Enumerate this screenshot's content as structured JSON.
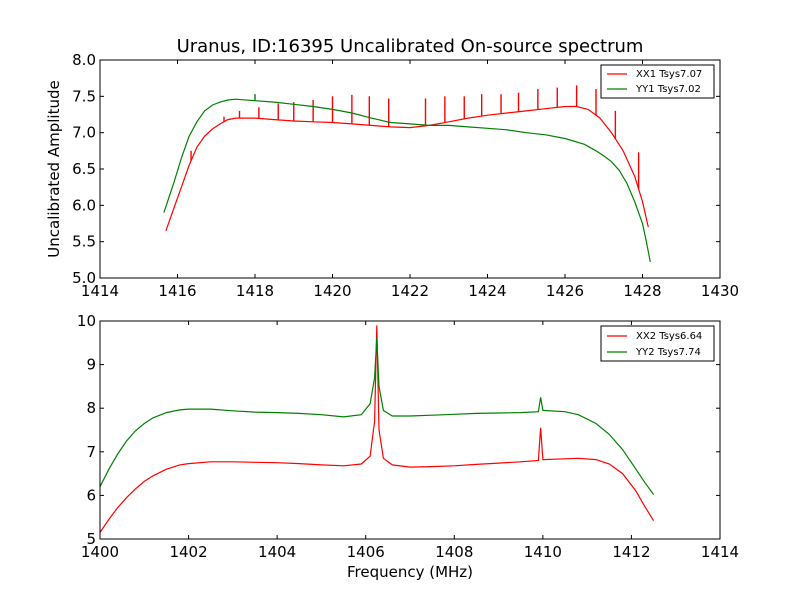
{
  "figure": {
    "title": "Uranus, ID:16395 Uncalibrated On-source spectrum"
  },
  "chart_data": [
    {
      "type": "line",
      "title": "Uranus, ID:16395 Uncalibrated On-source spectrum",
      "xlabel": "",
      "ylabel": "Uncalibrated Amplitude",
      "xlim": [
        1414,
        1430
      ],
      "ylim": [
        5.0,
        8.0
      ],
      "xticks": [
        "1414",
        "1416",
        "1418",
        "1420",
        "1422",
        "1424",
        "1426",
        "1428",
        "1430"
      ],
      "yticks": [
        "5.0",
        "5.5",
        "6.0",
        "6.5",
        "7.0",
        "7.5",
        "8.0"
      ],
      "legend_position": "top-right",
      "series": [
        {
          "name": "XX1 Tsys7.07",
          "color": "#ff0000",
          "x": [
            1415.7,
            1415.9,
            1416.1,
            1416.3,
            1416.5,
            1416.7,
            1416.9,
            1417.1,
            1417.3,
            1417.5,
            1418.0,
            1418.5,
            1419.0,
            1419.5,
            1420.0,
            1420.5,
            1421.0,
            1421.5,
            1422.0,
            1422.5,
            1423.0,
            1423.5,
            1424.0,
            1424.5,
            1425.0,
            1425.5,
            1426.0,
            1426.3,
            1426.6,
            1426.9,
            1427.2,
            1427.5,
            1427.8,
            1428.0,
            1428.15
          ],
          "y": [
            5.65,
            5.95,
            6.25,
            6.55,
            6.8,
            6.95,
            7.05,
            7.12,
            7.18,
            7.2,
            7.2,
            7.18,
            7.16,
            7.15,
            7.14,
            7.12,
            7.1,
            7.08,
            7.07,
            7.1,
            7.15,
            7.2,
            7.24,
            7.27,
            7.3,
            7.33,
            7.36,
            7.36,
            7.32,
            7.2,
            7.0,
            6.75,
            6.4,
            6.05,
            5.7
          ],
          "spikes": [
            {
              "x": 1416.35,
              "y": 6.75
            },
            {
              "x": 1417.2,
              "y": 7.22
            },
            {
              "x": 1417.6,
              "y": 7.3
            },
            {
              "x": 1418.1,
              "y": 7.35
            },
            {
              "x": 1418.6,
              "y": 7.4
            },
            {
              "x": 1419.0,
              "y": 7.42
            },
            {
              "x": 1419.5,
              "y": 7.45
            },
            {
              "x": 1420.0,
              "y": 7.5
            },
            {
              "x": 1420.5,
              "y": 7.52
            },
            {
              "x": 1420.95,
              "y": 7.5
            },
            {
              "x": 1421.45,
              "y": 7.47
            },
            {
              "x": 1422.4,
              "y": 7.47
            },
            {
              "x": 1422.9,
              "y": 7.5
            },
            {
              "x": 1423.4,
              "y": 7.5
            },
            {
              "x": 1423.85,
              "y": 7.53
            },
            {
              "x": 1424.35,
              "y": 7.53
            },
            {
              "x": 1424.8,
              "y": 7.55
            },
            {
              "x": 1425.3,
              "y": 7.6
            },
            {
              "x": 1425.8,
              "y": 7.62
            },
            {
              "x": 1426.3,
              "y": 7.65
            },
            {
              "x": 1426.8,
              "y": 7.6
            },
            {
              "x": 1427.3,
              "y": 7.3
            },
            {
              "x": 1427.9,
              "y": 6.73
            }
          ]
        },
        {
          "name": "YY1 Tsys7.02",
          "color": "#008000",
          "x": [
            1415.65,
            1415.9,
            1416.1,
            1416.3,
            1416.5,
            1416.7,
            1416.9,
            1417.1,
            1417.3,
            1417.5,
            1418.0,
            1418.5,
            1419.0,
            1419.5,
            1420.0,
            1420.5,
            1421.0,
            1421.5,
            1422.0,
            1422.5,
            1423.0,
            1423.5,
            1424.0,
            1424.5,
            1425.0,
            1425.5,
            1426.0,
            1426.5,
            1426.8,
            1427.0,
            1427.2,
            1427.4,
            1427.6,
            1427.8,
            1428.0,
            1428.1,
            1428.2
          ],
          "y": [
            5.9,
            6.3,
            6.65,
            6.95,
            7.15,
            7.3,
            7.38,
            7.42,
            7.45,
            7.46,
            7.44,
            7.42,
            7.39,
            7.36,
            7.32,
            7.27,
            7.2,
            7.14,
            7.12,
            7.1,
            7.1,
            7.08,
            7.06,
            7.04,
            7.0,
            6.97,
            6.92,
            6.84,
            6.75,
            6.68,
            6.6,
            6.48,
            6.3,
            6.05,
            5.75,
            5.5,
            5.22
          ],
          "spikes": [
            {
              "x": 1418.0,
              "y": 7.53
            }
          ]
        }
      ]
    },
    {
      "type": "line",
      "title": "",
      "xlabel": "Frequency (MHz)",
      "ylabel": "",
      "xlim": [
        1400,
        1414
      ],
      "ylim": [
        5,
        10
      ],
      "xticks": [
        "1400",
        "1402",
        "1404",
        "1406",
        "1408",
        "1410",
        "1412",
        "1414"
      ],
      "yticks": [
        "5",
        "6",
        "7",
        "8",
        "9",
        "10"
      ],
      "legend_position": "top-right",
      "series": [
        {
          "name": "XX2 Tsys6.64",
          "color": "#ff0000",
          "x": [
            1400.0,
            1400.2,
            1400.4,
            1400.6,
            1400.8,
            1401.0,
            1401.2,
            1401.5,
            1401.8,
            1402.0,
            1402.5,
            1403.0,
            1403.5,
            1404.0,
            1404.5,
            1405.0,
            1405.5,
            1405.9,
            1406.1,
            1406.2,
            1406.25,
            1406.3,
            1406.4,
            1406.6,
            1407.0,
            1407.5,
            1408.0,
            1408.5,
            1409.0,
            1409.5,
            1409.9,
            1409.95,
            1410.0,
            1410.5,
            1410.8,
            1411.2,
            1411.5,
            1411.8,
            1412.1,
            1412.3,
            1412.5
          ],
          "y": [
            5.15,
            5.45,
            5.72,
            5.95,
            6.15,
            6.32,
            6.45,
            6.6,
            6.7,
            6.73,
            6.77,
            6.77,
            6.76,
            6.75,
            6.73,
            6.7,
            6.68,
            6.72,
            6.9,
            7.7,
            9.9,
            7.5,
            6.85,
            6.7,
            6.65,
            6.66,
            6.68,
            6.71,
            6.74,
            6.77,
            6.8,
            7.55,
            6.82,
            6.84,
            6.85,
            6.82,
            6.72,
            6.5,
            6.1,
            5.75,
            5.42
          ]
        },
        {
          "name": "YY2 Tsys7.74",
          "color": "#008000",
          "x": [
            1400.0,
            1400.2,
            1400.4,
            1400.6,
            1400.8,
            1401.0,
            1401.2,
            1401.5,
            1401.8,
            1402.0,
            1402.5,
            1403.0,
            1403.5,
            1404.0,
            1404.5,
            1405.0,
            1405.5,
            1405.9,
            1406.1,
            1406.2,
            1406.25,
            1406.3,
            1406.4,
            1406.6,
            1407.0,
            1407.5,
            1408.0,
            1408.5,
            1409.0,
            1409.5,
            1409.9,
            1409.95,
            1410.0,
            1410.5,
            1410.8,
            1411.2,
            1411.5,
            1411.8,
            1412.1,
            1412.3,
            1412.5
          ],
          "y": [
            6.2,
            6.6,
            6.95,
            7.25,
            7.48,
            7.65,
            7.78,
            7.9,
            7.96,
            7.98,
            7.98,
            7.94,
            7.91,
            7.9,
            7.88,
            7.85,
            7.8,
            7.85,
            8.1,
            8.7,
            9.62,
            8.5,
            7.95,
            7.82,
            7.82,
            7.84,
            7.86,
            7.88,
            7.89,
            7.9,
            7.92,
            8.25,
            7.95,
            7.92,
            7.85,
            7.65,
            7.4,
            7.05,
            6.6,
            6.3,
            6.02
          ]
        }
      ]
    }
  ]
}
